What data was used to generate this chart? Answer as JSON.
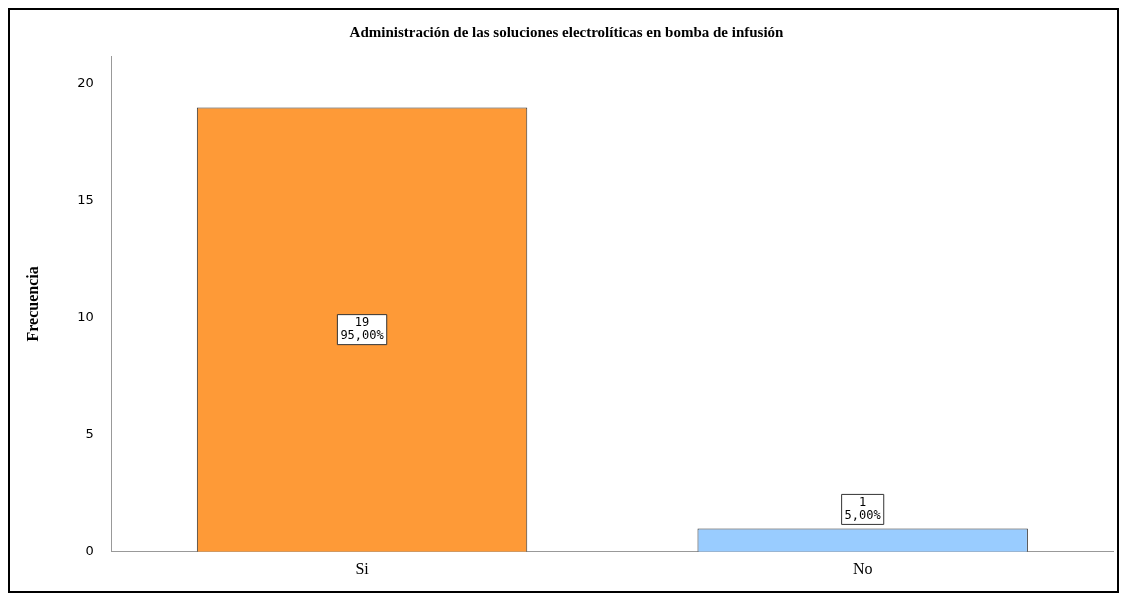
{
  "chart_data": {
    "type": "bar",
    "title": "Administración de las soluciones electrolíticas en bomba de infusión",
    "ylabel": "Frecuencia",
    "categories": [
      "Si",
      "No"
    ],
    "values": [
      19,
      1
    ],
    "colors": [
      "#fe9a37",
      "#99ccff"
    ],
    "value_labels": [
      "19\n95,00%",
      "1\n5,00%"
    ],
    "ylim": [
      0,
      21.2
    ],
    "yticks": [
      0,
      5,
      10,
      15,
      20
    ],
    "grid": false,
    "legend": false
  }
}
